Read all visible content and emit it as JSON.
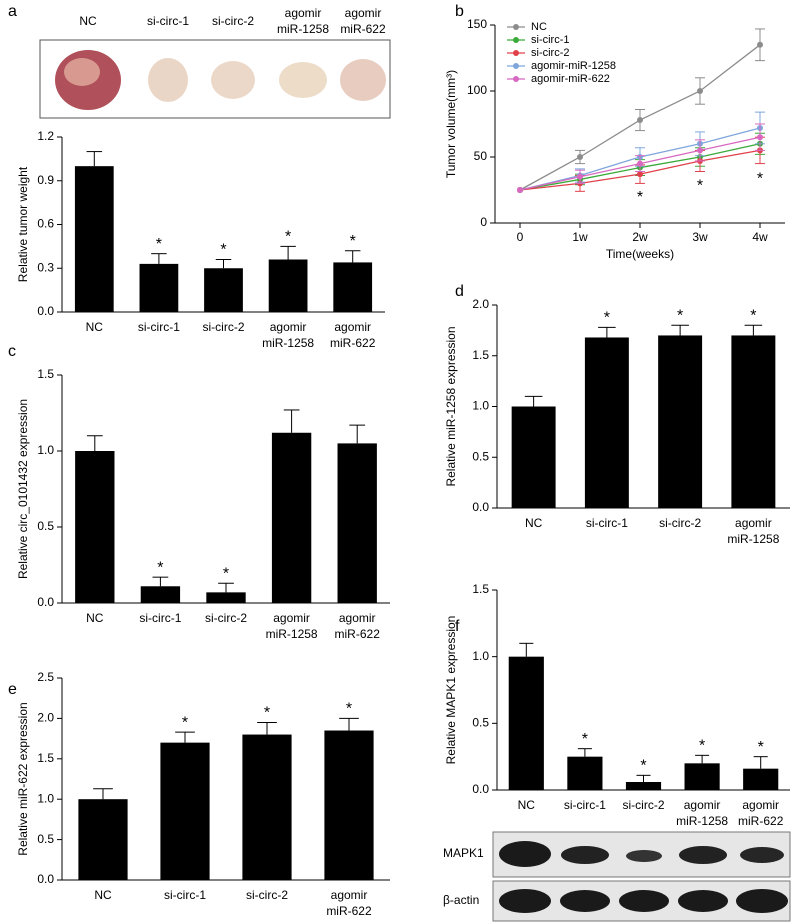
{
  "chart_data": [
    {
      "type": "bar",
      "panel": "a",
      "ylabel": "Relative tumor weight",
      "categories": [
        "NC",
        "si-circ-1",
        "si-circ-2",
        "agomir miR-1258",
        "agomir miR-622"
      ],
      "values": [
        1.0,
        0.33,
        0.3,
        0.36,
        0.34
      ],
      "errors": [
        0.1,
        0.07,
        0.06,
        0.09,
        0.08
      ],
      "annotations": [
        null,
        "*",
        "*",
        "*",
        "*"
      ],
      "color": "#000000",
      "ylim": [
        0,
        1.2
      ],
      "yticks": [
        {
          "value": 0,
          "label": "0.0"
        },
        0.3,
        0.6,
        0.9,
        1.2
      ]
    },
    {
      "type": "line",
      "panel": "b",
      "ylabel": "Tumor volume(mm³)",
      "xlabel": "Time(weeks)",
      "categories": [
        "0",
        "1w",
        "2w",
        "3w",
        "4w"
      ],
      "series": [
        {
          "name": "NC",
          "color": "#8c8c8c",
          "values": [
            25,
            50,
            78,
            100,
            135
          ],
          "errors": [
            0,
            5,
            8,
            10,
            12
          ]
        },
        {
          "name": "si-circ-1",
          "color": "#3aaa3a",
          "values": [
            25,
            33,
            42,
            50,
            60
          ],
          "errors": [
            0,
            4,
            6,
            7,
            8
          ]
        },
        {
          "name": "si-circ-2",
          "color": "#e0404a",
          "values": [
            25,
            30,
            37,
            47,
            55
          ],
          "errors": [
            0,
            6,
            7,
            8,
            10
          ]
        },
        {
          "name": "agomir-miR-1258",
          "color": "#7fa6dc",
          "values": [
            25,
            36,
            50,
            60,
            72
          ],
          "errors": [
            0,
            5,
            7,
            9,
            12
          ]
        },
        {
          "name": "agomir-miR-622",
          "color": "#d868c0",
          "values": [
            25,
            35,
            45,
            55,
            65
          ],
          "errors": [
            0,
            5,
            6,
            8,
            10
          ]
        }
      ],
      "annotations": [
        {
          "x": "2w",
          "y": 19,
          "text": "*"
        },
        {
          "x": "3w",
          "y": 28,
          "text": "*"
        },
        {
          "x": "4w",
          "y": 33,
          "text": "*"
        }
      ],
      "ylim": [
        0,
        150
      ],
      "yticks": [
        0,
        50,
        100,
        150
      ],
      "legend": "top-left"
    },
    {
      "type": "bar",
      "panel": "c",
      "ylabel": "Relative circ_0101432 expression",
      "categories": [
        "NC",
        "si-circ-1",
        "si-circ-2",
        "agomir miR-1258",
        "agomir miR-622"
      ],
      "values": [
        1.0,
        0.11,
        0.07,
        1.12,
        1.05
      ],
      "errors": [
        0.1,
        0.06,
        0.06,
        0.15,
        0.12
      ],
      "annotations": [
        null,
        "*",
        "*",
        null,
        null
      ],
      "color": "#000000",
      "ylim": [
        0,
        1.5
      ],
      "yticks": [
        {
          "value": 0,
          "label": "0.0"
        },
        0.5,
        {
          "value": 1,
          "label": "1.0"
        },
        1.5
      ]
    },
    {
      "type": "bar",
      "panel": "d",
      "ylabel": "Relative miR-1258 expression",
      "categories": [
        "NC",
        "si-circ-1",
        "si-circ-2",
        "agomir miR-1258"
      ],
      "values": [
        1.0,
        1.68,
        1.7,
        1.7
      ],
      "errors": [
        0.1,
        0.1,
        0.1,
        0.1
      ],
      "annotations": [
        null,
        "*",
        "*",
        "*"
      ],
      "color": "#000000",
      "ylim": [
        0,
        2.0
      ],
      "yticks": [
        {
          "value": 0,
          "label": "0.0"
        },
        0.5,
        {
          "value": 1,
          "label": "1.0"
        },
        1.5,
        {
          "value": 2,
          "label": "2.0"
        }
      ]
    },
    {
      "type": "bar",
      "panel": "e",
      "ylabel": "Relative miR-622 expression",
      "categories": [
        "NC",
        "si-circ-1",
        "si-circ-2",
        "agomir miR-622"
      ],
      "values": [
        1.0,
        1.7,
        1.8,
        1.85
      ],
      "errors": [
        0.13,
        0.13,
        0.15,
        0.15
      ],
      "annotations": [
        null,
        "*",
        "*",
        "*"
      ],
      "color": "#000000",
      "ylim": [
        0,
        2.5
      ],
      "yticks": [
        {
          "value": 0,
          "label": "0.0"
        },
        0.5,
        {
          "value": 1,
          "label": "1.0"
        },
        1.5,
        {
          "value": 2,
          "label": "2.0"
        },
        2.5
      ]
    },
    {
      "type": "bar",
      "panel": "f",
      "ylabel": "Relative MAPK1 expression",
      "categories": [
        "NC",
        "si-circ-1",
        "si-circ-2",
        "agomir miR-1258",
        "agomir miR-622"
      ],
      "values": [
        1.0,
        0.25,
        0.06,
        0.2,
        0.16
      ],
      "errors": [
        0.1,
        0.06,
        0.05,
        0.06,
        0.09
      ],
      "annotations": [
        null,
        "*",
        "*",
        "*",
        "*"
      ],
      "color": "#000000",
      "ylim": [
        0,
        1.5
      ],
      "yticks": [
        {
          "value": 0,
          "label": "0.0"
        },
        0.5,
        {
          "value": 1,
          "label": "1.0"
        },
        1.5
      ],
      "blot_labels": [
        "MAPK1",
        "β-actin"
      ]
    }
  ]
}
